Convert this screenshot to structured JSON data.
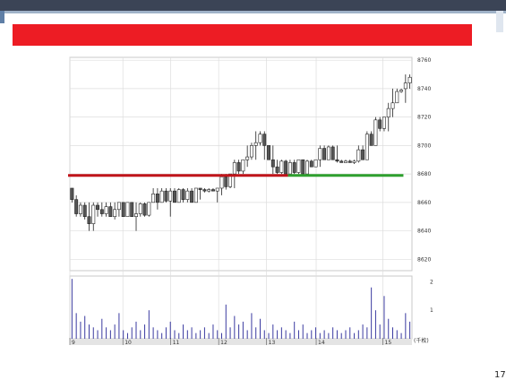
{
  "slide": {
    "page_number": "17",
    "banner_color": "#ed1c24",
    "frame_color": "#3b4456"
  },
  "chart_data": {
    "type": "candlestick",
    "title": "",
    "xlabel": "",
    "ylabel": "",
    "ylim": [
      8612,
      8762
    ],
    "y_ticks": [
      "8760",
      "8740",
      "8720",
      "8700",
      "8680",
      "8660",
      "8640",
      "8620"
    ],
    "x_tick_labels": [
      "9",
      "10",
      "11",
      "12",
      "13",
      "14",
      "15"
    ],
    "volume_axis_labels": [
      "2",
      "1"
    ],
    "volume_unit_label": "(千枚)",
    "grid": true,
    "resistance_line": {
      "price": 8679,
      "color": "#c0141a",
      "from_bar": 0,
      "to_bar": 51
    },
    "support_line": {
      "price": 8679,
      "color": "#2ea02e",
      "from_bar": 51,
      "to_bar": 78
    },
    "candles": [
      [
        8670,
        8670,
        8660,
        8662
      ],
      [
        8662,
        8665,
        8650,
        8652
      ],
      [
        8652,
        8660,
        8650,
        8658
      ],
      [
        8658,
        8660,
        8648,
        8650
      ],
      [
        8650,
        8660,
        8640,
        8645
      ],
      [
        8645,
        8660,
        8640,
        8658
      ],
      [
        8658,
        8660,
        8650,
        8655
      ],
      [
        8655,
        8660,
        8650,
        8652
      ],
      [
        8652,
        8660,
        8650,
        8657
      ],
      [
        8657,
        8660,
        8650,
        8650
      ],
      [
        8650,
        8660,
        8648,
        8655
      ],
      [
        8655,
        8660,
        8650,
        8660
      ],
      [
        8660,
        8660,
        8650,
        8650
      ],
      [
        8650,
        8660,
        8650,
        8660
      ],
      [
        8660,
        8660,
        8650,
        8650
      ],
      [
        8650,
        8660,
        8640,
        8652
      ],
      [
        8652,
        8660,
        8650,
        8659
      ],
      [
        8659,
        8660,
        8650,
        8651
      ],
      [
        8651,
        8660,
        8650,
        8660
      ],
      [
        8660,
        8670,
        8660,
        8666
      ],
      [
        8666,
        8670,
        8655,
        8660
      ],
      [
        8660,
        8670,
        8660,
        8668
      ],
      [
        8668,
        8670,
        8660,
        8661
      ],
      [
        8661,
        8670,
        8650,
        8668
      ],
      [
        8668,
        8670,
        8660,
        8660
      ],
      [
        8660,
        8670,
        8660,
        8669
      ],
      [
        8669,
        8670,
        8660,
        8662
      ],
      [
        8662,
        8670,
        8660,
        8668
      ],
      [
        8668,
        8670,
        8660,
        8660
      ],
      [
        8660,
        8670,
        8660,
        8670
      ],
      [
        8670,
        8670,
        8662,
        8669
      ],
      [
        8669,
        8670,
        8667,
        8668
      ],
      [
        8668,
        8670,
        8667,
        8669
      ],
      [
        8669,
        8670,
        8668,
        8668
      ],
      [
        8668,
        8670,
        8660,
        8670
      ],
      [
        8670,
        8680,
        8665,
        8678
      ],
      [
        8678,
        8680,
        8669,
        8671
      ],
      [
        8671,
        8680,
        8670,
        8680
      ],
      [
        8680,
        8690,
        8670,
        8688
      ],
      [
        8688,
        8690,
        8680,
        8682
      ],
      [
        8682,
        8690,
        8680,
        8690
      ],
      [
        8690,
        8700,
        8685,
        8692
      ],
      [
        8692,
        8702,
        8690,
        8700
      ],
      [
        8700,
        8710,
        8690,
        8702
      ],
      [
        8702,
        8710,
        8700,
        8708
      ],
      [
        8708,
        8710,
        8690,
        8700
      ],
      [
        8700,
        8700,
        8690,
        8690
      ],
      [
        8690,
        8700,
        8680,
        8685
      ],
      [
        8685,
        8690,
        8680,
        8681
      ],
      [
        8681,
        8690,
        8680,
        8689
      ],
      [
        8689,
        8690,
        8680,
        8680
      ],
      [
        8680,
        8690,
        8680,
        8688
      ],
      [
        8688,
        8690,
        8680,
        8681
      ],
      [
        8681,
        8690,
        8680,
        8690
      ],
      [
        8690,
        8690,
        8680,
        8680
      ],
      [
        8680,
        8690,
        8680,
        8689
      ],
      [
        8689,
        8690,
        8685,
        8685
      ],
      [
        8685,
        8690,
        8685,
        8690
      ],
      [
        8690,
        8700,
        8685,
        8698
      ],
      [
        8698,
        8700,
        8690,
        8690
      ],
      [
        8690,
        8700,
        8690,
        8699
      ],
      [
        8699,
        8700,
        8690,
        8690
      ],
      [
        8690,
        8700,
        8688,
        8689
      ],
      [
        8689,
        8690,
        8688,
        8688
      ],
      [
        8688,
        8690,
        8688,
        8689
      ],
      [
        8689,
        8690,
        8688,
        8688
      ],
      [
        8688,
        8690,
        8687,
        8689
      ],
      [
        8689,
        8700,
        8688,
        8697
      ],
      [
        8697,
        8700,
        8690,
        8690
      ],
      [
        8690,
        8710,
        8690,
        8708
      ],
      [
        8708,
        8710,
        8700,
        8700
      ],
      [
        8700,
        8720,
        8700,
        8718
      ],
      [
        8718,
        8720,
        8710,
        8712
      ],
      [
        8712,
        8720,
        8710,
        8720
      ],
      [
        8720,
        8730,
        8710,
        8726
      ],
      [
        8726,
        8740,
        8720,
        8730
      ],
      [
        8730,
        8740,
        8730,
        8738
      ],
      [
        8738,
        8740,
        8737,
        8739
      ],
      [
        8740,
        8750,
        8730,
        8744
      ],
      [
        8744,
        8750,
        8740,
        8748
      ]
    ],
    "volumes": [
      2.1,
      0.9,
      0.6,
      0.8,
      0.5,
      0.4,
      0.3,
      0.7,
      0.4,
      0.3,
      0.5,
      0.9,
      0.3,
      0.2,
      0.4,
      0.6,
      0.3,
      0.5,
      1.0,
      0.4,
      0.3,
      0.2,
      0.4,
      0.6,
      0.3,
      0.2,
      0.5,
      0.3,
      0.4,
      0.2,
      0.3,
      0.4,
      0.2,
      0.5,
      0.3,
      0.2,
      1.2,
      0.4,
      0.8,
      0.5,
      0.6,
      0.3,
      0.9,
      0.4,
      0.7,
      0.3,
      0.2,
      0.5,
      0.3,
      0.4,
      0.3,
      0.2,
      0.6,
      0.3,
      0.5,
      0.2,
      0.3,
      0.4,
      0.2,
      0.3,
      0.2,
      0.4,
      0.3,
      0.2,
      0.3,
      0.4,
      0.2,
      0.3,
      0.5,
      0.4,
      1.8,
      1.0,
      0.5,
      1.5,
      0.7,
      0.4,
      0.3,
      0.2,
      0.9,
      0.6
    ]
  }
}
